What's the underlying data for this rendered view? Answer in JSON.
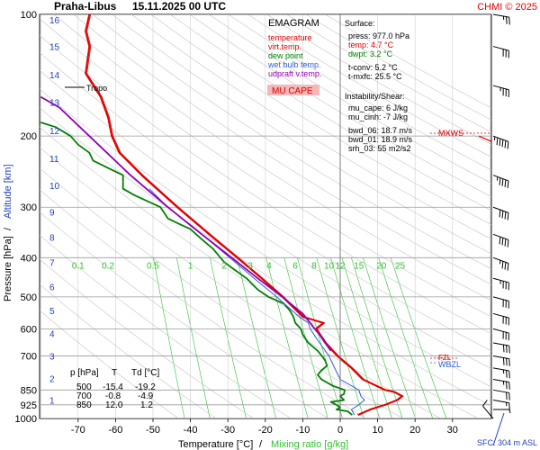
{
  "header": {
    "station": "Praha-Libus",
    "datetime": "15.11.2025 00 UTC",
    "copyright": "CHMI © 2025"
  },
  "legend": {
    "title": "EMAGRAM",
    "items": [
      {
        "label": "temperature",
        "color": "#e00000"
      },
      {
        "label": "virt.temp.",
        "color": "#e00000"
      },
      {
        "label": "dew point",
        "color": "#008000"
      },
      {
        "label": "wet bulb temp.",
        "color": "#3060d0"
      },
      {
        "label": "udpraft v.temp.",
        "color": "#9000b0"
      }
    ],
    "badge": "MU CAPE",
    "badge_color": "#f4b8b8"
  },
  "info": {
    "surface_title": "Surface:",
    "surface": [
      {
        "text": "press: 977.0 hPa",
        "color": "#000000"
      },
      {
        "text": "temp: 4.7 °C",
        "color": "#e00000"
      },
      {
        "text": "dwpt: 3.2 °C",
        "color": "#008000"
      }
    ],
    "conv": [
      "t-conv: 5.2 °C",
      "t-mxfc: 25.5 °C"
    ],
    "instability_title": "Instability/Shear:",
    "instability": [
      "mu_cape: 6 J/kg",
      "mu_cinh: -7 J/kg"
    ],
    "shear": [
      "bwd_06: 18.7 m/s",
      "bwd_01: 18.9 m/s",
      "srh_03: 55 m2/s2"
    ]
  },
  "annotations": {
    "tropo": "Tropo",
    "mxws": "MXWS",
    "wbzl": "WBZL",
    "fzl": "FZL",
    "sfc": "SFC: 304 m ASL"
  },
  "table": {
    "headers": [
      "p [hPa]",
      "T",
      "Td [°C]"
    ],
    "rows": [
      [
        "500",
        "-15.4",
        "-19.2"
      ],
      [
        "700",
        "-0.8",
        "-4.9"
      ],
      [
        "850",
        "12.0",
        "1.2"
      ]
    ]
  },
  "axes": {
    "xlabel": "Temperature [°C]",
    "xlabel_sep": "/",
    "xlabel2": "Mixing ratio [g/kg]",
    "ylabel": "Pressure [hPa]",
    "ylabel_sep": "/",
    "ylabel2": "Altitude [km]",
    "colors": {
      "altitude": "#2040c0",
      "mixing": "#30c030",
      "grid": "#b0b0b0"
    }
  },
  "chart_data": {
    "type": "line",
    "x_range": [
      -80,
      40
    ],
    "y_range": [
      100,
      1000
    ],
    "y_scale": "log",
    "x_ticks": [
      -70,
      -60,
      -50,
      -40,
      -30,
      -20,
      -10,
      0,
      10,
      20,
      30
    ],
    "pressure_ticks": [
      100,
      200,
      300,
      400,
      500,
      600,
      700,
      850,
      925,
      1000
    ],
    "altitude_ticks": [
      {
        "label": "1",
        "p": 900
      },
      {
        "label": "2",
        "p": 795
      },
      {
        "label": "3",
        "p": 700
      },
      {
        "label": "4",
        "p": 616
      },
      {
        "label": "5",
        "p": 540
      },
      {
        "label": "6",
        "p": 472
      },
      {
        "label": "7",
        "p": 411
      },
      {
        "label": "8",
        "p": 356
      },
      {
        "label": "9",
        "p": 308
      },
      {
        "label": "10",
        "p": 265
      },
      {
        "label": "11",
        "p": 227
      },
      {
        "label": "12",
        "p": 194
      },
      {
        "label": "13",
        "p": 165
      },
      {
        "label": "14",
        "p": 141
      },
      {
        "label": "15",
        "p": 120
      },
      {
        "label": "16",
        "p": 103
      }
    ],
    "mixing_ratio_labels": [
      "0.1",
      "0.2",
      "0.5",
      "1",
      "2",
      "3",
      "4",
      "6",
      "8",
      "10",
      "12",
      "15",
      "20",
      "25"
    ],
    "mixing_ratio_temps_at_400": [
      -70,
      -62,
      -50,
      -40,
      -31,
      -24,
      -19,
      -12,
      -7,
      -3,
      0,
      5,
      11,
      16
    ],
    "series": [
      {
        "name": "temperature",
        "color": "#e00000",
        "points": [
          [
            980,
            4.7
          ],
          [
            950,
            8
          ],
          [
            925,
            12
          ],
          [
            900,
            15.2
          ],
          [
            880,
            16.5
          ],
          [
            860,
            14.5
          ],
          [
            850,
            12
          ],
          [
            800,
            6
          ],
          [
            750,
            3
          ],
          [
            700,
            -0.8
          ],
          [
            650,
            -4
          ],
          [
            620,
            -5.5
          ],
          [
            600,
            -6.5
          ],
          [
            580,
            -4.5
          ],
          [
            560,
            -10
          ],
          [
            500,
            -15.4
          ],
          [
            450,
            -21
          ],
          [
            400,
            -27.5
          ],
          [
            350,
            -35
          ],
          [
            300,
            -43.5
          ],
          [
            250,
            -53
          ],
          [
            220,
            -59
          ],
          [
            200,
            -61
          ],
          [
            180,
            -62
          ],
          [
            160,
            -64
          ],
          [
            140,
            -68
          ],
          [
            120,
            -67
          ],
          [
            110,
            -68
          ],
          [
            100,
            -67
          ]
        ]
      },
      {
        "name": "dew point",
        "color": "#008000",
        "points": [
          [
            980,
            3.2
          ],
          [
            960,
            2
          ],
          [
            950,
            -1
          ],
          [
            940,
            0
          ],
          [
            925,
            -1
          ],
          [
            910,
            -2.5
          ],
          [
            900,
            1
          ],
          [
            880,
            0
          ],
          [
            870,
            1
          ],
          [
            850,
            1.2
          ],
          [
            830,
            -2
          ],
          [
            800,
            -5
          ],
          [
            780,
            -6
          ],
          [
            760,
            -5
          ],
          [
            740,
            -3.5
          ],
          [
            720,
            -4
          ],
          [
            700,
            -4.9
          ],
          [
            680,
            -6
          ],
          [
            650,
            -8.5
          ],
          [
            620,
            -10
          ],
          [
            600,
            -10.5
          ],
          [
            580,
            -12
          ],
          [
            560,
            -12.5
          ],
          [
            540,
            -13.5
          ],
          [
            520,
            -15
          ],
          [
            500,
            -19.2
          ],
          [
            480,
            -22
          ],
          [
            450,
            -25
          ],
          [
            430,
            -28
          ],
          [
            410,
            -31
          ],
          [
            400,
            -32
          ],
          [
            380,
            -34
          ],
          [
            360,
            -37
          ],
          [
            340,
            -40
          ],
          [
            330,
            -43
          ],
          [
            320,
            -46
          ],
          [
            300,
            -48
          ],
          [
            280,
            -55
          ],
          [
            270,
            -58
          ],
          [
            250,
            -58
          ],
          [
            240,
            -62
          ],
          [
            230,
            -66
          ],
          [
            220,
            -67
          ],
          [
            210,
            -70
          ],
          [
            200,
            -72
          ],
          [
            190,
            -76
          ],
          [
            185,
            -80
          ]
        ]
      },
      {
        "name": "wet bulb temp.",
        "color": "#3060d0",
        "points": [
          [
            980,
            3.8
          ],
          [
            950,
            3
          ],
          [
            925,
            5
          ],
          [
            900,
            6.5
          ],
          [
            880,
            5.5
          ],
          [
            850,
            5
          ],
          [
            800,
            0
          ],
          [
            750,
            -1.5
          ],
          [
            700,
            -3
          ],
          [
            650,
            -5.5
          ],
          [
            620,
            -7
          ],
          [
            600,
            -8
          ],
          [
            580,
            -8.5
          ],
          [
            560,
            -11
          ],
          [
            500,
            -17
          ],
          [
            450,
            -23
          ],
          [
            400,
            -29.5
          ],
          [
            350,
            -37
          ],
          [
            300,
            -46
          ],
          [
            270,
            -51
          ]
        ]
      },
      {
        "name": "udpraft v.temp.",
        "color": "#9000b0",
        "points": [
          [
            680,
            -2.5
          ],
          [
            650,
            -4
          ],
          [
            620,
            -5.5
          ],
          [
            600,
            -6.8
          ],
          [
            580,
            -8
          ],
          [
            550,
            -10
          ],
          [
            500,
            -15.5
          ],
          [
            450,
            -22
          ],
          [
            400,
            -29
          ],
          [
            350,
            -37
          ],
          [
            300,
            -46
          ],
          [
            250,
            -56
          ],
          [
            200,
            -67
          ],
          [
            170,
            -75
          ],
          [
            160,
            -80
          ]
        ]
      }
    ],
    "wind_barbs": [
      {
        "p": 1000,
        "dir": 140,
        "speed": 10
      },
      {
        "p": 950,
        "dir": 270,
        "speed": 5
      },
      {
        "p": 900,
        "dir": 280,
        "speed": 15
      },
      {
        "p": 850,
        "dir": 280,
        "speed": 20
      },
      {
        "p": 800,
        "dir": 280,
        "speed": 25
      },
      {
        "p": 750,
        "dir": 280,
        "speed": 25
      },
      {
        "p": 700,
        "dir": 280,
        "speed": 30
      },
      {
        "p": 650,
        "dir": 280,
        "speed": 30
      },
      {
        "p": 600,
        "dir": 285,
        "speed": 30
      },
      {
        "p": 550,
        "dir": 285,
        "speed": 30
      },
      {
        "p": 500,
        "dir": 285,
        "speed": 30
      },
      {
        "p": 450,
        "dir": 285,
        "speed": 35
      },
      {
        "p": 400,
        "dir": 290,
        "speed": 35
      },
      {
        "p": 350,
        "dir": 290,
        "speed": 40
      },
      {
        "p": 300,
        "dir": 290,
        "speed": 40
      },
      {
        "p": 250,
        "dir": 290,
        "speed": 45
      },
      {
        "p": 200,
        "dir": 290,
        "speed": 55
      },
      {
        "p": 150,
        "dir": 285,
        "speed": 35
      },
      {
        "p": 120,
        "dir": 285,
        "speed": 30
      },
      {
        "p": 100,
        "dir": 280,
        "speed": 25
      }
    ]
  }
}
